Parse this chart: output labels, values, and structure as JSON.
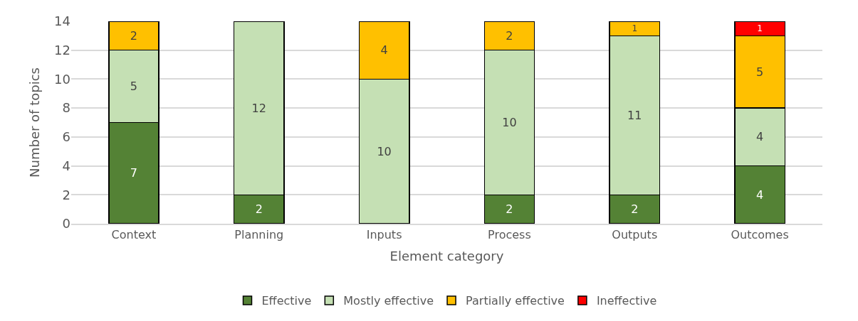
{
  "chart_data": {
    "type": "bar",
    "stacked": true,
    "xlabel": "Element category",
    "ylabel": "Number of topics",
    "categories": [
      "Context",
      "Planning",
      "Inputs",
      "Process",
      "Outputs",
      "Outcomes"
    ],
    "series": [
      {
        "name": "Effective",
        "color": "#548235",
        "values": [
          7,
          2,
          null,
          2,
          2,
          4
        ],
        "value_labels": [
          "7",
          "2",
          null,
          "2",
          "2",
          "4"
        ]
      },
      {
        "name": "Mostly effective",
        "color": "#c5e0b4",
        "values": [
          5,
          12,
          10,
          10,
          11,
          4
        ],
        "value_labels": [
          "5",
          "12",
          "10",
          "10",
          "11",
          "4"
        ]
      },
      {
        "name": "Partially effective",
        "color": "#ffc000",
        "values": [
          2,
          null,
          4,
          2,
          1,
          5
        ],
        "value_labels": [
          "2",
          null,
          "4",
          "2",
          "1",
          "5"
        ]
      },
      {
        "name": "Ineffective",
        "color": "#ff0000",
        "values": [
          null,
          null,
          null,
          null,
          null,
          1
        ],
        "value_labels": [
          null,
          null,
          null,
          null,
          null,
          "1"
        ]
      }
    ],
    "ylim": [
      0,
      14
    ],
    "yticks": [
      0,
      2,
      4,
      6,
      8,
      10,
      12,
      14
    ],
    "grid": "y",
    "legend": "bottom"
  }
}
